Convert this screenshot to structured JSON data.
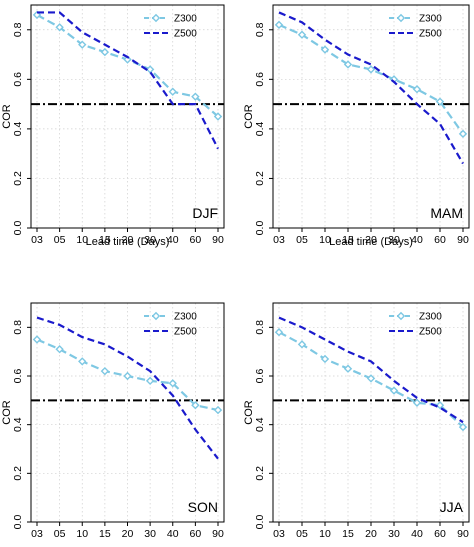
{
  "chart_data": [
    {
      "type": "line",
      "panel_label": "DJF",
      "xlabel": "Lead time (Days)",
      "ylabel": "COR",
      "categories": [
        "03",
        "05",
        "10",
        "15",
        "20",
        "30",
        "40",
        "60",
        "90"
      ],
      "ylim": [
        0,
        0.9
      ],
      "yticks": [
        "0.0",
        "0.2",
        "0.4",
        "0.6",
        "0.8"
      ],
      "grid": true,
      "legend_position": "top-right",
      "reference_line": 0.5,
      "series": [
        {
          "name": "Z300",
          "values": [
            0.86,
            0.81,
            0.74,
            0.71,
            0.68,
            0.64,
            0.55,
            0.53,
            0.45
          ]
        },
        {
          "name": "Z500",
          "values": [
            0.87,
            0.87,
            0.79,
            0.74,
            0.69,
            0.63,
            0.5,
            0.5,
            0.32
          ]
        }
      ]
    },
    {
      "type": "line",
      "panel_label": "MAM",
      "xlabel": "Lead time (Days)",
      "ylabel": "COR",
      "categories": [
        "03",
        "05",
        "10",
        "15",
        "20",
        "30",
        "40",
        "60",
        "90"
      ],
      "ylim": [
        0,
        0.9
      ],
      "yticks": [
        "0.0",
        "0.2",
        "0.4",
        "0.6",
        "0.8"
      ],
      "grid": true,
      "legend_position": "top-right",
      "reference_line": 0.5,
      "series": [
        {
          "name": "Z300",
          "values": [
            0.82,
            0.78,
            0.72,
            0.66,
            0.64,
            0.6,
            0.56,
            0.51,
            0.38
          ]
        },
        {
          "name": "Z500",
          "values": [
            0.87,
            0.83,
            0.76,
            0.7,
            0.66,
            0.59,
            0.5,
            0.42,
            0.26
          ]
        }
      ]
    },
    {
      "type": "line",
      "panel_label": "SON",
      "xlabel": "",
      "ylabel": "COR",
      "categories": [
        "03",
        "05",
        "10",
        "15",
        "20",
        "30",
        "40",
        "60",
        "90"
      ],
      "ylim": [
        0,
        0.9
      ],
      "yticks": [
        "0.0",
        "0.2",
        "0.4",
        "0.6",
        "0.8"
      ],
      "grid": true,
      "legend_position": "top-right",
      "reference_line": 0.5,
      "series": [
        {
          "name": "Z300",
          "values": [
            0.75,
            0.71,
            0.66,
            0.62,
            0.6,
            0.58,
            0.57,
            0.48,
            0.46
          ]
        },
        {
          "name": "Z500",
          "values": [
            0.84,
            0.81,
            0.76,
            0.73,
            0.68,
            0.62,
            0.52,
            0.38,
            0.26
          ]
        }
      ]
    },
    {
      "type": "line",
      "panel_label": "JJA",
      "xlabel": "",
      "ylabel": "COR",
      "categories": [
        "03",
        "05",
        "10",
        "15",
        "20",
        "30",
        "40",
        "60",
        "90"
      ],
      "ylim": [
        0,
        0.9
      ],
      "yticks": [
        "0.0",
        "0.2",
        "0.4",
        "0.6",
        "0.8"
      ],
      "grid": true,
      "legend_position": "top-right",
      "reference_line": 0.5,
      "series": [
        {
          "name": "Z300",
          "values": [
            0.78,
            0.73,
            0.67,
            0.63,
            0.59,
            0.54,
            0.49,
            0.48,
            0.39
          ]
        },
        {
          "name": "Z500",
          "values": [
            0.84,
            0.8,
            0.75,
            0.7,
            0.66,
            0.58,
            0.51,
            0.47,
            0.41
          ]
        }
      ]
    }
  ],
  "colors": {
    "z300": "#7ec8e3",
    "z500": "#1a1acc",
    "reference_line": "#000000"
  }
}
